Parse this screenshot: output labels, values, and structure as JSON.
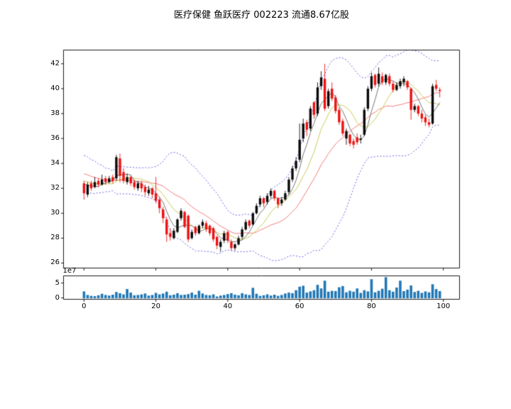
{
  "chart_data": {
    "type": "candlestick",
    "title": "医疗保健 鱼跃医疗 002223 流通8.67亿股",
    "legend_position": "none",
    "grid": false,
    "axes": {
      "x": {
        "ticks": [
          0,
          20,
          40,
          60,
          80,
          100
        ],
        "lim": [
          -5.7,
          104.5
        ]
      },
      "price": {
        "yticks": [
          26,
          28,
          30,
          32,
          34,
          36,
          38,
          40,
          42
        ],
        "ylim": [
          25.6,
          43.1
        ]
      },
      "volume": {
        "yticks": [
          0,
          5
        ],
        "ylim": [
          -0.45,
          7.42
        ],
        "offset_label": "1e7"
      }
    },
    "colors": {
      "up": "#0a0a0a",
      "down": "#ee1111",
      "ma_fast": "#757575",
      "ma_mid": "#c9c955",
      "ma_slow": "#f47c7c",
      "band": "#6363e3",
      "volume_bar": "#2077b4",
      "spine": "#000000"
    },
    "indicators": {
      "ma_fast_window": 5,
      "ma_mid_window": 10,
      "ma_slow_window": 20,
      "band_window": 20,
      "band_sigma": 2,
      "warmup_close": [
        37.2,
        36.6,
        36.9,
        35.8,
        36.3,
        35.2,
        35.7,
        34.8,
        35.3,
        34.4,
        34.9,
        34.1,
        34.6,
        33.8,
        34.3,
        33.5,
        34.0,
        33.2,
        33.7,
        33.0,
        33.4,
        32.8,
        33.2,
        32.6,
        33.0,
        32.5,
        32.8,
        32.4,
        32.6,
        32.4
      ]
    },
    "ohlc": [
      [
        32.4,
        32.6,
        31.1,
        31.6
      ],
      [
        31.5,
        32.5,
        31.3,
        32.3
      ],
      [
        32.4,
        32.6,
        31.8,
        32.0
      ],
      [
        32.1,
        32.9,
        32.0,
        32.5
      ],
      [
        32.6,
        32.8,
        32.1,
        32.3
      ],
      [
        32.3,
        33.1,
        32.2,
        32.7
      ],
      [
        32.8,
        33.0,
        32.3,
        32.5
      ],
      [
        32.5,
        33.0,
        32.4,
        32.8
      ],
      [
        32.9,
        33.1,
        32.4,
        32.6
      ],
      [
        32.8,
        34.7,
        32.6,
        34.5
      ],
      [
        34.4,
        34.8,
        32.5,
        33.0
      ],
      [
        33.3,
        33.6,
        32.4,
        32.6
      ],
      [
        32.5,
        33.2,
        32.3,
        32.9
      ],
      [
        32.9,
        33.0,
        32.2,
        32.4
      ],
      [
        32.5,
        32.7,
        31.9,
        32.1
      ],
      [
        32.0,
        32.6,
        31.8,
        32.4
      ],
      [
        32.4,
        32.6,
        31.7,
        32.0
      ],
      [
        32.1,
        32.3,
        31.4,
        31.7
      ],
      [
        31.6,
        32.2,
        31.4,
        31.9
      ],
      [
        32.0,
        32.1,
        31.2,
        31.5
      ],
      [
        31.6,
        32.9,
        30.8,
        31.0
      ],
      [
        31.1,
        31.3,
        30.0,
        30.4
      ],
      [
        30.3,
        30.5,
        29.2,
        29.6
      ],
      [
        29.5,
        29.7,
        27.7,
        28.3
      ],
      [
        28.4,
        28.8,
        27.8,
        28.1
      ],
      [
        28.0,
        28.8,
        27.9,
        28.6
      ],
      [
        28.5,
        29.6,
        28.4,
        29.5
      ],
      [
        29.6,
        30.4,
        29.4,
        30.2
      ],
      [
        30.1,
        30.2,
        28.8,
        28.9
      ],
      [
        29.8,
        29.9,
        27.7,
        27.9
      ],
      [
        28.0,
        28.7,
        27.9,
        28.5
      ],
      [
        28.9,
        29.0,
        28.2,
        28.4
      ],
      [
        28.4,
        29.1,
        28.3,
        29.0
      ],
      [
        29.0,
        29.5,
        28.8,
        29.3
      ],
      [
        29.2,
        29.4,
        28.5,
        28.7
      ],
      [
        29.0,
        29.1,
        28.2,
        28.4
      ],
      [
        28.8,
        28.9,
        27.7,
        27.9
      ],
      [
        28.1,
        28.2,
        27.1,
        27.4
      ],
      [
        27.3,
        27.9,
        26.9,
        27.7
      ],
      [
        27.8,
        28.6,
        27.6,
        28.4
      ],
      [
        28.5,
        28.6,
        27.6,
        27.8
      ],
      [
        27.7,
        27.9,
        27.0,
        27.2
      ],
      [
        27.2,
        27.6,
        27.0,
        27.5
      ],
      [
        27.5,
        28.2,
        27.4,
        28.0
      ],
      [
        28.1,
        28.9,
        27.9,
        28.7
      ],
      [
        28.7,
        29.5,
        28.6,
        29.3
      ],
      [
        29.4,
        29.5,
        28.8,
        29.0
      ],
      [
        29.1,
        30.1,
        29.0,
        30.0
      ],
      [
        30.0,
        30.8,
        29.9,
        30.6
      ],
      [
        30.7,
        31.4,
        30.5,
        31.2
      ],
      [
        31.2,
        31.3,
        30.5,
        30.8
      ],
      [
        30.9,
        31.6,
        30.7,
        31.4
      ],
      [
        31.4,
        32.0,
        31.2,
        31.8
      ],
      [
        31.8,
        31.9,
        31.0,
        31.2
      ],
      [
        31.2,
        31.3,
        30.4,
        30.7
      ],
      [
        30.8,
        31.3,
        30.6,
        31.1
      ],
      [
        31.1,
        31.8,
        31.0,
        31.6
      ],
      [
        31.7,
        32.9,
        31.5,
        32.7
      ],
      [
        32.7,
        33.8,
        32.5,
        33.6
      ],
      [
        33.6,
        34.5,
        33.4,
        34.2
      ],
      [
        34.3,
        37.2,
        34.1,
        35.9
      ],
      [
        36.0,
        37.6,
        35.7,
        37.2
      ],
      [
        37.3,
        37.5,
        36.2,
        36.7
      ],
      [
        36.8,
        38.6,
        36.6,
        38.4
      ],
      [
        38.9,
        39.0,
        37.6,
        37.9
      ],
      [
        38.0,
        40.5,
        37.8,
        40.1
      ],
      [
        40.2,
        41.4,
        39.9,
        40.9
      ],
      [
        40.8,
        42.0,
        38.2,
        38.4
      ],
      [
        38.6,
        40.0,
        38.4,
        39.8
      ],
      [
        40.0,
        40.5,
        39.0,
        39.2
      ],
      [
        39.3,
        39.5,
        38.0,
        38.2
      ],
      [
        38.3,
        38.5,
        37.1,
        37.3
      ],
      [
        37.4,
        37.6,
        36.2,
        36.4
      ],
      [
        36.0,
        36.8,
        35.5,
        36.6
      ],
      [
        36.3,
        36.4,
        35.4,
        35.6
      ],
      [
        35.8,
        36.0,
        35.2,
        35.5
      ],
      [
        36.1,
        36.4,
        35.5,
        35.7
      ],
      [
        35.9,
        36.3,
        35.6,
        36.0
      ],
      [
        36.3,
        38.5,
        36.2,
        38.3
      ],
      [
        38.4,
        40.2,
        38.2,
        40.0
      ],
      [
        40.0,
        41.3,
        39.8,
        41.0
      ],
      [
        41.1,
        41.2,
        40.1,
        40.3
      ],
      [
        40.4,
        41.7,
        40.2,
        41.2
      ],
      [
        41.0,
        41.3,
        40.3,
        40.5
      ],
      [
        40.5,
        41.2,
        40.3,
        41.1
      ],
      [
        41.0,
        41.2,
        40.2,
        40.4
      ],
      [
        40.4,
        40.6,
        39.7,
        39.9
      ],
      [
        39.9,
        40.5,
        39.8,
        40.3
      ],
      [
        40.2,
        40.8,
        40.0,
        40.6
      ],
      [
        40.5,
        41.0,
        40.2,
        40.8
      ],
      [
        40.6,
        40.7,
        39.9,
        40.1
      ],
      [
        40.0,
        40.1,
        37.5,
        38.3
      ],
      [
        38.3,
        38.8,
        38.1,
        38.6
      ],
      [
        38.6,
        38.7,
        37.8,
        38.0
      ],
      [
        38.0,
        38.3,
        37.3,
        37.6
      ],
      [
        37.7,
        37.9,
        37.0,
        37.3
      ],
      [
        37.3,
        37.6,
        36.9,
        37.1
      ],
      [
        37.2,
        40.4,
        37.1,
        40.2
      ],
      [
        40.3,
        40.7,
        39.8,
        40.0
      ],
      [
        39.9,
        40.1,
        39.3,
        39.8
      ]
    ],
    "volume_1e7": [
      2.2,
      1.0,
      0.7,
      0.6,
      0.9,
      1.4,
      1.0,
      0.8,
      1.1,
      2.0,
      1.6,
      1.2,
      3.0,
      1.8,
      0.9,
      1.0,
      1.2,
      1.5,
      0.8,
      1.0,
      1.7,
      1.2,
      1.5,
      2.1,
      0.9,
      1.1,
      1.6,
      1.0,
      1.1,
      1.3,
      1.8,
      1.1,
      2.4,
      1.5,
      1.0,
      0.9,
      1.2,
      0.5,
      0.8,
      1.0,
      1.3,
      1.6,
      1.1,
      0.9,
      1.6,
      1.2,
      1.0,
      3.4,
      1.4,
      0.7,
      0.9,
      1.2,
      0.8,
      1.1,
      0.7,
      1.0,
      1.5,
      1.8,
      1.6,
      2.6,
      3.8,
      4.1,
      1.8,
      2.2,
      2.6,
      4.4,
      3.2,
      5.8,
      2.1,
      2.4,
      2.3,
      3.6,
      4.0,
      1.9,
      2.4,
      2.1,
      3.2,
      1.7,
      2.6,
      2.2,
      6.3,
      1.9,
      2.4,
      3.1,
      7.0,
      2.6,
      2.1,
      3.5,
      5.8,
      2.3,
      2.8,
      4.2,
      2.0,
      2.4,
      1.7,
      2.2,
      1.9,
      4.6,
      3.0,
      2.3
    ]
  }
}
